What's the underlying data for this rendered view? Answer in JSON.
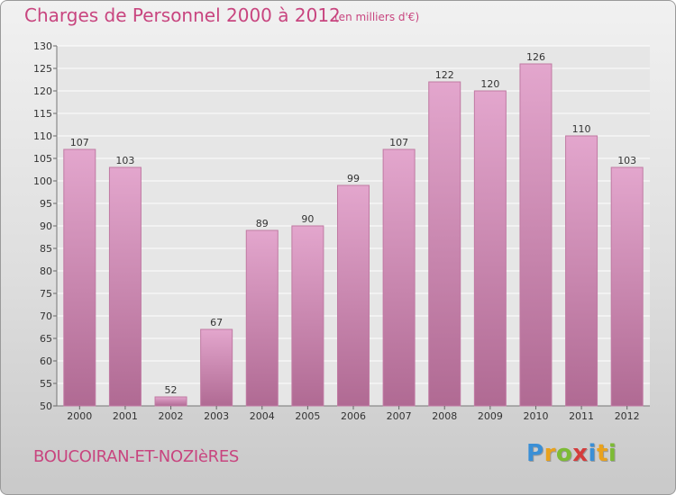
{
  "title": "Charges de Personnel 2000 à 2012",
  "unit_note": "(en milliers d'€)",
  "place": "BOUCOIRAN-ET-NOZIèRES",
  "brand": {
    "letters": [
      "P",
      "r",
      "o",
      "x",
      "i",
      "t",
      "i"
    ],
    "colors": [
      "#3a8fd6",
      "#e9a21d",
      "#7dbb35",
      "#d43c3c",
      "#3a8fd6",
      "#e9a21d",
      "#7dbb35"
    ]
  },
  "chart_data": {
    "type": "bar",
    "title": "Charges de Personnel 2000 à 2012",
    "subtitle": "(en milliers d'€)",
    "categories": [
      "2000",
      "2001",
      "2002",
      "2003",
      "2004",
      "2005",
      "2006",
      "2007",
      "2008",
      "2009",
      "2010",
      "2011",
      "2012"
    ],
    "values": [
      107,
      103,
      52,
      67,
      89,
      90,
      99,
      107,
      122,
      120,
      126,
      110,
      103
    ],
    "ylim": [
      50,
      130
    ],
    "yticks": [
      50,
      55,
      60,
      65,
      70,
      75,
      80,
      85,
      90,
      95,
      100,
      105,
      110,
      115,
      120,
      125,
      130
    ],
    "grid": true,
    "bar_color": "#d98cb9",
    "label_color": "#333333"
  }
}
